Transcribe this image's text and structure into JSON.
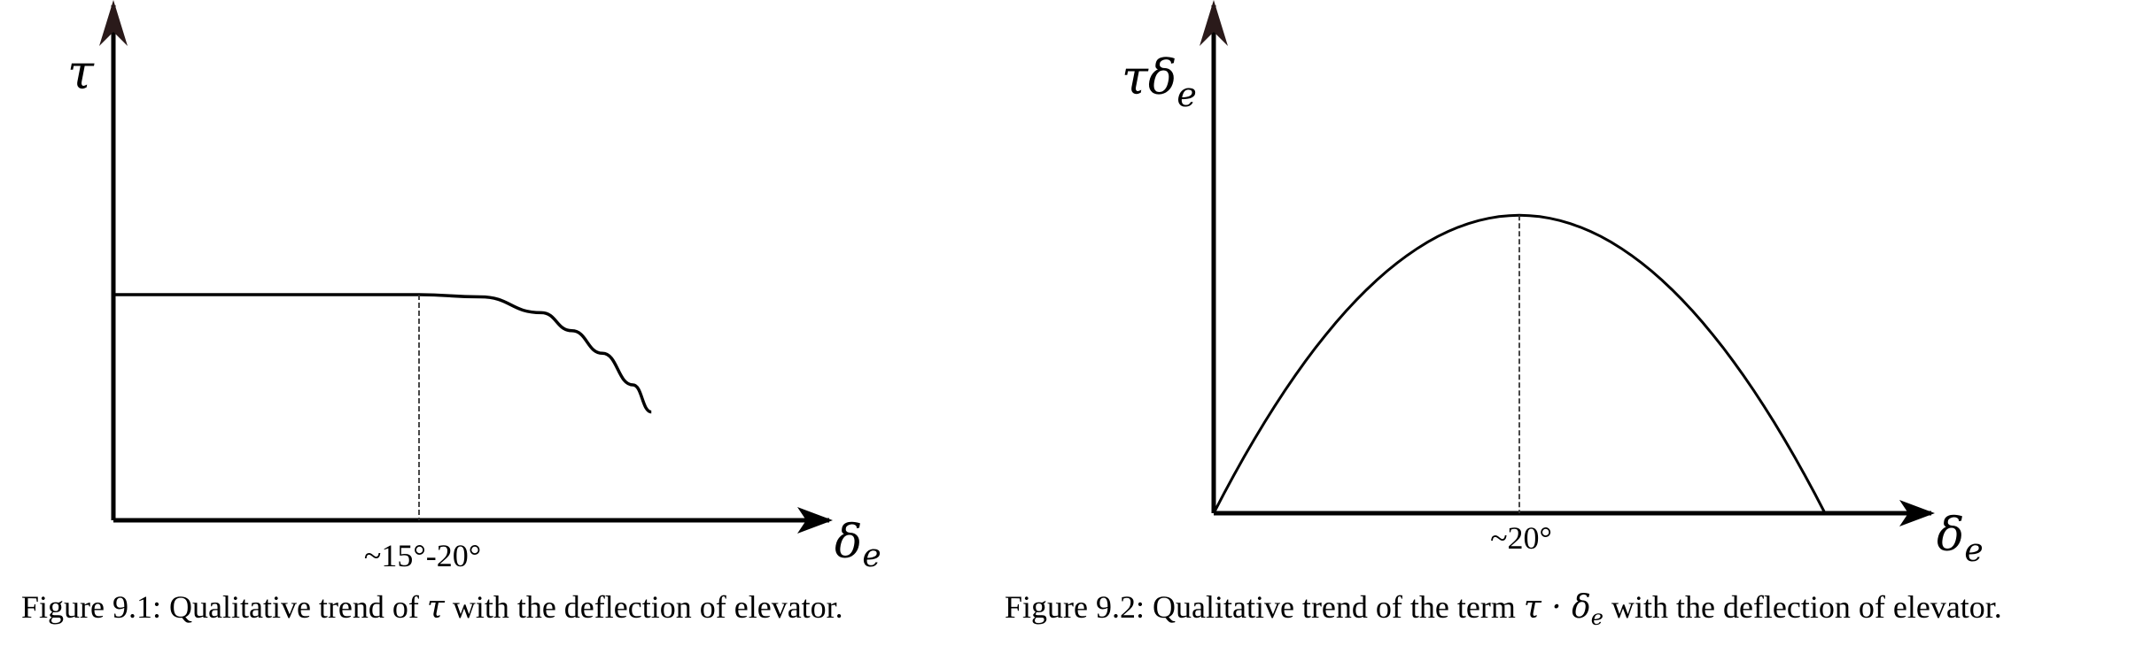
{
  "chart_data": [
    {
      "type": "line",
      "ylabel": "τ",
      "xlabel": "δ",
      "xlabel_sub": "e",
      "x": [
        0,
        0.25,
        0.5,
        0.6,
        0.7,
        0.75,
        0.8,
        0.85,
        0.88
      ],
      "y": [
        0.5,
        0.5,
        0.5,
        0.495,
        0.46,
        0.42,
        0.37,
        0.3,
        0.24
      ],
      "xlim": [
        0,
        1.2
      ],
      "ylim": [
        0,
        1.1
      ],
      "marker_x": 0.5,
      "tick_label": "~15°-20°",
      "caption": {
        "prefix": "Figure 9.1:  Qualitative trend of ",
        "math": "τ",
        "suffix": " with the deflection of elevator."
      }
    },
    {
      "type": "line",
      "ylabel": "τδ",
      "ylabel_sub": "e",
      "xlabel": "δ",
      "xlabel_sub": "e",
      "x": [
        0,
        0.5,
        1.0
      ],
      "y": [
        0,
        0.65,
        0
      ],
      "xlim": [
        0,
        1.2
      ],
      "ylim": [
        0,
        1.1
      ],
      "marker_x": 0.5,
      "tick_label": "~20°",
      "caption": {
        "prefix": "Figure 9.2:  Qualitative trend of the term ",
        "math": "τ · δ",
        "math_sub": "e",
        "suffix": " with the deflection of elevator."
      }
    }
  ]
}
